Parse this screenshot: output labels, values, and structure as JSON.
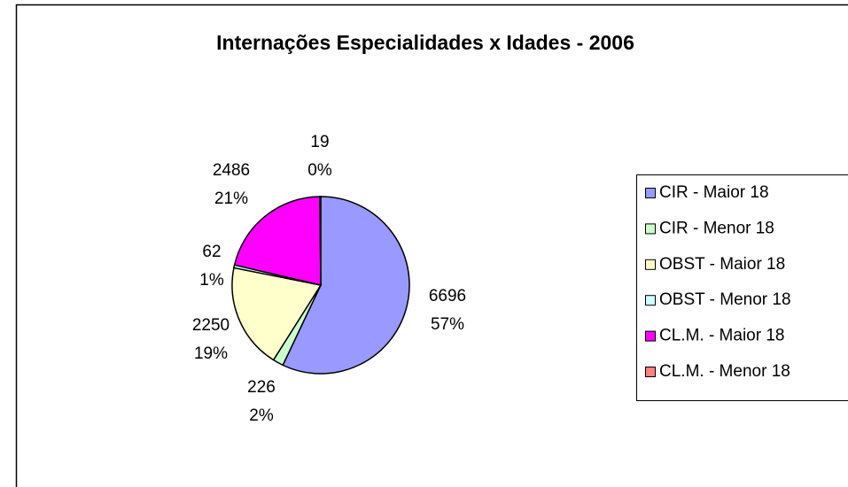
{
  "chart_data": {
    "type": "pie",
    "title": "Internações Especialidades x Idades - 2006",
    "categories": [
      "CIR - Maior 18",
      "CIR - Menor 18",
      "OBST - Maior 18",
      "OBST - Menor 18",
      "CL.M. - Maior 18",
      "CL.M. - Menor 18"
    ],
    "values": [
      6696,
      226,
      2250,
      62,
      2486,
      19
    ],
    "percent_labels": [
      "57%",
      "2%",
      "19%",
      "1%",
      "21%",
      "0%"
    ],
    "colors": [
      "#9999ff",
      "#ccffcc",
      "#ffffcc",
      "#ccffff",
      "#ff00ff",
      "#ff8080"
    ],
    "legend": "right"
  }
}
